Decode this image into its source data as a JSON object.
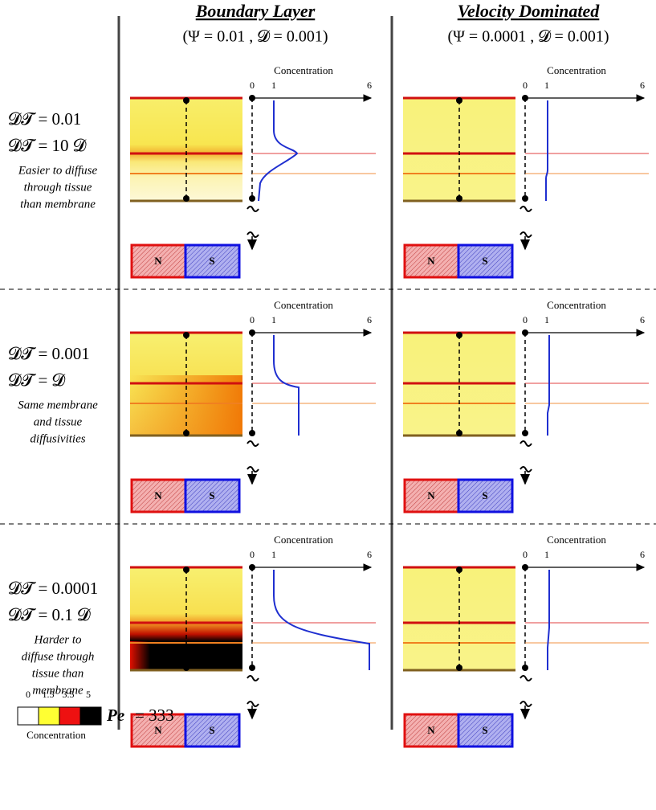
{
  "columns": [
    {
      "title": "Boundary Layer",
      "params": "(Ψ = 0.01 , 𝓓 = 0.001)"
    },
    {
      "title": "Velocity Dominated",
      "params": "(Ψ = 0.0001 , 𝓓 = 0.001)"
    }
  ],
  "rows": [
    {
      "label1": "𝓓𝓣 = 0.01",
      "label2": "𝓓𝓣 = 10 𝓓",
      "note": [
        "Easier to diffuse",
        "through tissue",
        "than membrane"
      ]
    },
    {
      "label1": "𝓓𝓣 = 0.001",
      "label2": "𝓓𝓣 = 𝓓",
      "note": [
        "Same membrane",
        "and tissue",
        "diffusivities"
      ]
    },
    {
      "label1": "𝓓𝓣 = 0.0001",
      "label2": "𝓓𝓣 = 0.1 𝓓",
      "note": [
        "Harder to",
        "diffuse through",
        "tissue than",
        "membrane"
      ]
    }
  ],
  "profile_axis": {
    "label": "Concentration",
    "ticks": [
      0,
      1,
      6
    ]
  },
  "magnet": {
    "north": "N",
    "south": "S"
  },
  "colorbar": {
    "ticks": [
      0,
      1.5,
      3.5,
      5
    ],
    "label": "Concentration",
    "colors": [
      "#ffffff",
      "#ffff33",
      "#ee1111",
      "#000000"
    ]
  },
  "peclet": {
    "symbol": "Pe",
    "text": "= 333"
  }
}
